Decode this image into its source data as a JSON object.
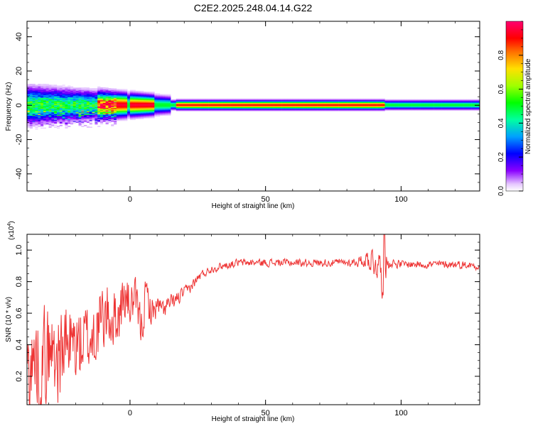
{
  "title": "C2E2.2025.248.04.14.G22",
  "chart_data": [
    {
      "type": "heatmap",
      "title": "C2E2.2025.248.04.14.G22",
      "xlabel": "Height of straight line (km)",
      "ylabel": "Frequency (Hz)",
      "xlim": [
        -38,
        129
      ],
      "ylim": [
        -50,
        49
      ],
      "x_ticks": [
        {
          "value": 0,
          "label": "0"
        },
        {
          "value": 50,
          "label": "50"
        },
        {
          "value": 100,
          "label": "100"
        }
      ],
      "y_ticks": [
        {
          "value": 40,
          "label": "40"
        },
        {
          "value": 20,
          "label": "20"
        },
        {
          "value": 0,
          "label": "0"
        },
        {
          "value": -20,
          "label": "-20"
        },
        {
          "value": -40,
          "label": "-40"
        }
      ],
      "colorbar": {
        "label": "Normalized spectral amplitude",
        "range": [
          0,
          1
        ],
        "colormap": "rainbow",
        "ticks": [
          {
            "value": 0.0,
            "label": "0.0"
          },
          {
            "value": 0.2,
            "label": "0.2"
          },
          {
            "value": 0.4,
            "label": "0.4"
          },
          {
            "value": 0.6,
            "label": "0.6"
          },
          {
            "value": 0.8,
            "label": "0.8"
          }
        ]
      },
      "ridge": {
        "center_frequency": 0,
        "peak_segments": [
          {
            "x": [
              -12,
              -2
            ],
            "value": 0.95
          },
          {
            "x": [
              0,
              8
            ],
            "value": 0.95
          },
          {
            "x": [
              17,
              93
            ],
            "value": 0.9
          }
        ]
      }
    },
    {
      "type": "line",
      "xlabel": "Height of straight line (km)",
      "ylabel": "SNR (10 * v/v)",
      "y_multiplier_label": "(x10",
      "y_multiplier_exponent": "4",
      "y_multiplier_close": ")",
      "xlim": [
        -38,
        129
      ],
      "ylim": [
        0.02,
        1.1
      ],
      "color": "#ee3333",
      "x_ticks": [
        {
          "value": 0,
          "label": "0"
        },
        {
          "value": 50,
          "label": "50"
        },
        {
          "value": 100,
          "label": "100"
        }
      ],
      "y_ticks": [
        {
          "value": 1.0,
          "label": "1.0"
        },
        {
          "value": 0.8,
          "label": "0.8"
        },
        {
          "value": 0.6,
          "label": "0.6"
        },
        {
          "value": 0.4,
          "label": "0.4"
        },
        {
          "value": 0.2,
          "label": "0.2"
        }
      ],
      "series": [
        {
          "x": [
            -38,
            -34,
            -30,
            -26,
            -22,
            -18,
            -14,
            -10,
            -8,
            -6,
            -4,
            -2,
            0,
            2,
            4,
            6,
            8,
            10,
            12,
            14,
            16,
            18,
            20,
            22,
            24,
            26,
            28,
            30,
            34,
            40,
            50,
            60,
            70,
            80,
            86,
            88,
            90,
            92,
            93,
            94,
            95,
            96,
            100,
            110,
            120,
            129
          ],
          "y": [
            0.25,
            0.3,
            0.35,
            0.35,
            0.4,
            0.4,
            0.45,
            0.55,
            0.6,
            0.55,
            0.6,
            0.7,
            0.65,
            0.68,
            0.5,
            0.72,
            0.6,
            0.65,
            0.62,
            0.65,
            0.67,
            0.7,
            0.73,
            0.76,
            0.8,
            0.84,
            0.86,
            0.88,
            0.9,
            0.92,
            0.92,
            0.92,
            0.92,
            0.92,
            0.93,
            0.95,
            0.93,
            0.9,
            0.85,
            0.9,
            0.92,
            0.92,
            0.91,
            0.91,
            0.91,
            0.9
          ],
          "amplitude": [
            0.25,
            0.25,
            0.25,
            0.25,
            0.22,
            0.2,
            0.2,
            0.18,
            0.18,
            0.15,
            0.15,
            0.14,
            0.12,
            0.1,
            0.12,
            0.1,
            0.08,
            0.06,
            0.05,
            0.05,
            0.04,
            0.04,
            0.03,
            0.03,
            0.025,
            0.025,
            0.02,
            0.02,
            0.02,
            0.02,
            0.02,
            0.02,
            0.02,
            0.02,
            0.03,
            0.06,
            0.08,
            0.08,
            0.12,
            0.1,
            0.04,
            0.025,
            0.02,
            0.02,
            0.02,
            0.02
          ]
        }
      ]
    }
  ]
}
